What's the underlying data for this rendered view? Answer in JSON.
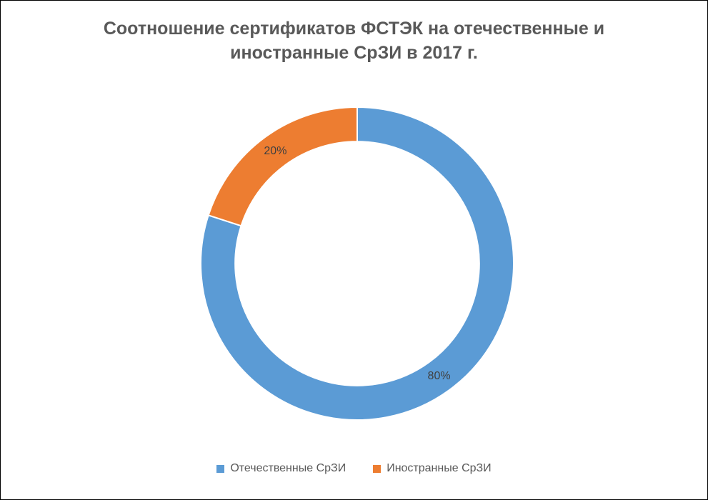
{
  "page": {
    "background": "#ffffff",
    "border_color": "#000000"
  },
  "chart_data": {
    "type": "pie",
    "subtype": "donut",
    "title": "Соотношение сертификатов ФСТЭК на отечественные и иностранные СрЗИ в 2017 г.",
    "title_lines": [
      "Соотношение сертификатов ФСТЭК на отечественные и",
      "иностранные СрЗИ в 2017 г."
    ],
    "categories": [
      "Отечественные СрЗИ",
      "Иностранные СрЗИ"
    ],
    "values": [
      80,
      20
    ],
    "unit": "%",
    "data_labels": [
      "80%",
      "20%"
    ],
    "colors": [
      "#5B9BD5",
      "#ED7D31"
    ],
    "label_color": "#404040",
    "title_color": "#595959",
    "start_angle_deg": 0,
    "direction": "clockwise",
    "hole_ratio": 0.78,
    "slice_border_color": "#ffffff",
    "legend_position": "bottom",
    "grid": false
  },
  "legend": {
    "items": [
      {
        "label": "Отечественные СрЗИ",
        "color": "#5B9BD5"
      },
      {
        "label": "Иностранные СрЗИ",
        "color": "#ED7D31"
      }
    ]
  }
}
